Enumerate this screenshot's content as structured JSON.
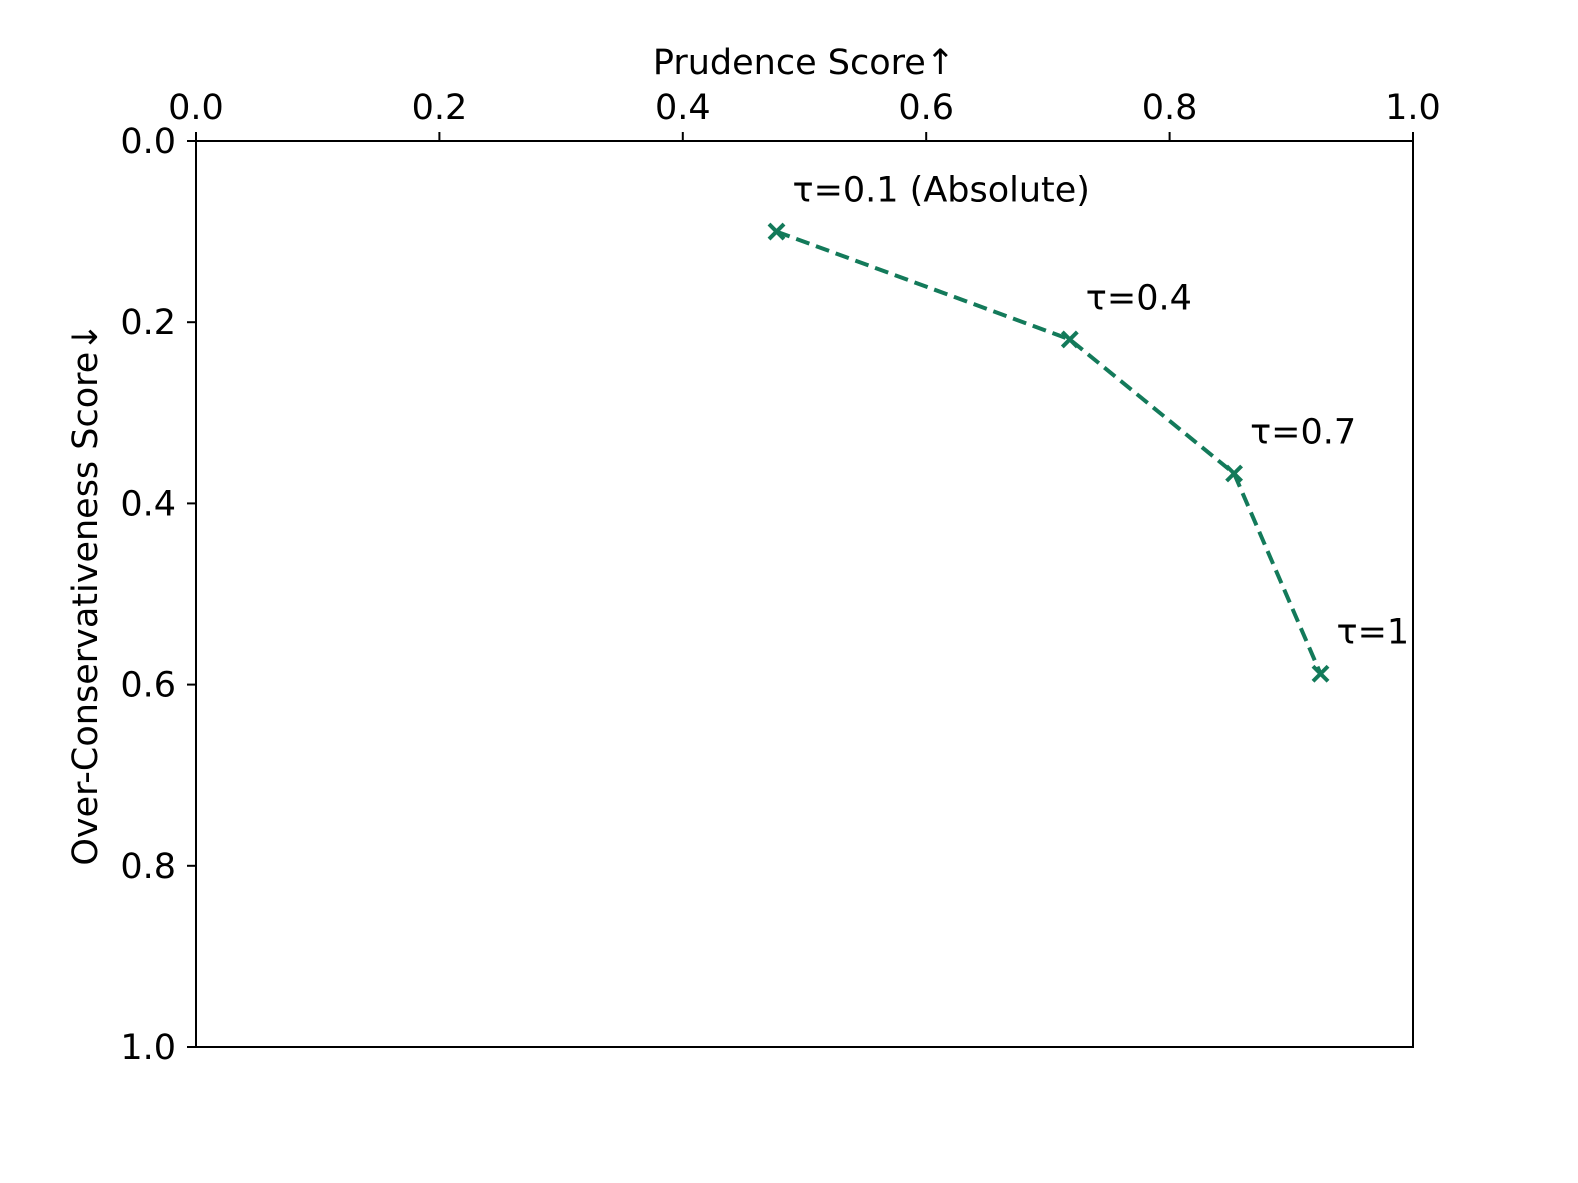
{
  "chart_data": {
    "type": "line",
    "title": "",
    "xlabel": "Prudence Score↑",
    "ylabel": "Over-Conservativeness Score↓",
    "xlim": [
      0.0,
      1.0
    ],
    "ylim": [
      0.0,
      1.0
    ],
    "x_axis_position": "top",
    "y_axis_inverted": true,
    "grid": false,
    "x_ticks": [
      "0.0",
      "0.2",
      "0.4",
      "0.6",
      "0.8",
      "1.0"
    ],
    "y_ticks": [
      "0.0",
      "0.2",
      "0.4",
      "0.6",
      "0.8",
      "1.0"
    ],
    "series": [
      {
        "color": "#137a5a",
        "line_style": "dashed",
        "marker": "x",
        "points": [
          {
            "x": 0.477,
            "y": 0.1,
            "label": "τ=0.1 (Absolute)"
          },
          {
            "x": 0.718,
            "y": 0.219,
            "label": "τ=0.4"
          },
          {
            "x": 0.853,
            "y": 0.367,
            "label": "τ=0.7"
          },
          {
            "x": 0.924,
            "y": 0.588,
            "label": "τ=1"
          }
        ]
      }
    ]
  }
}
